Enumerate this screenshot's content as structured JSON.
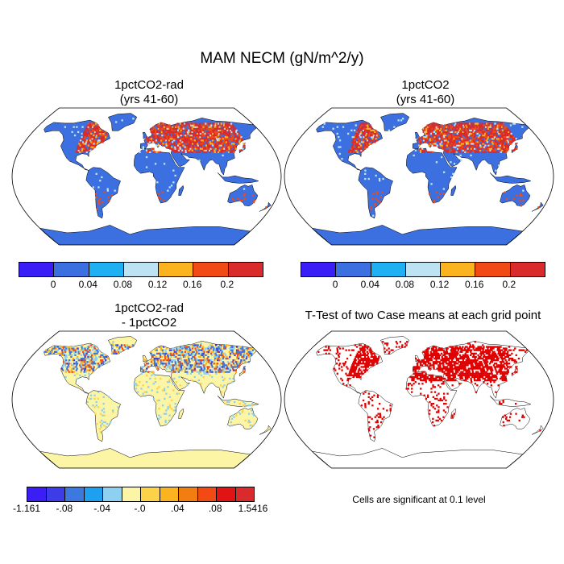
{
  "title": "MAM NECM (gN/m^2/y)",
  "panels": [
    {
      "title_line1": "1pctCO2-rad",
      "title_line2": "(yrs 41-60)"
    },
    {
      "title_line1": "1pctCO2",
      "title_line2": "(yrs 41-60)"
    },
    {
      "title_line1": "1pctCO2-rad",
      "title_line2": "- 1pctCO2"
    },
    {
      "title_line1": "T-Test of two Case means at each grid point"
    }
  ],
  "significance_note": "Cells are significant at 0.1 level",
  "colorbar_top": {
    "colors": [
      "#3b1ef5",
      "#3c6fe0",
      "#1eb0f0",
      "#bde3f2",
      "#fbb31f",
      "#f24a14",
      "#d92b2b"
    ],
    "labels": [
      "0",
      "0.04",
      "0.08",
      "0.12",
      "0.16",
      "0.2"
    ]
  },
  "colorbar_diff": {
    "colors": [
      "#3b1ef5",
      "#3c3ce8",
      "#3c78e0",
      "#1ea0f0",
      "#8ed0f0",
      "#fdf5a6",
      "#fcd24a",
      "#fbb31f",
      "#f27d10",
      "#f24a14",
      "#e01414",
      "#d92b2b"
    ],
    "labels": [
      "-1.161",
      "-.08",
      "-.04",
      "-.0",
      ".04",
      ".08",
      "1.5416"
    ]
  },
  "map_colors": {
    "ocean": "#ffffff",
    "land_base_top": "#3c6fe0",
    "land_base_diff": "#fdf5a6",
    "significant": "#e00000"
  }
}
